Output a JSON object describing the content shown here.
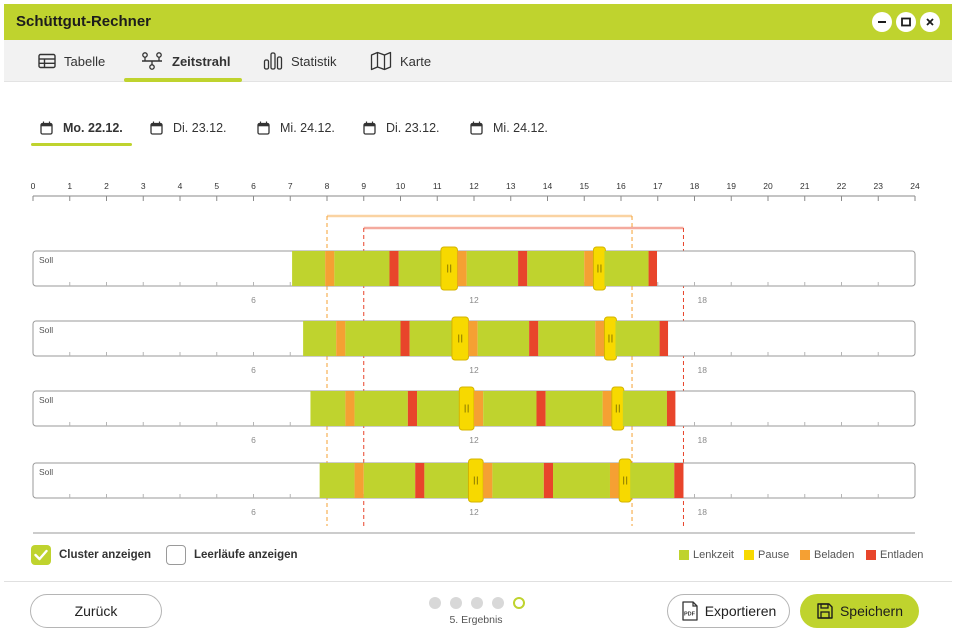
{
  "window": {
    "title": "Schüttgut-Rechner"
  },
  "nav": {
    "tabs": [
      {
        "label": "Tabelle",
        "icon": "table-icon"
      },
      {
        "label": "Zeitstrahl",
        "icon": "timeline-icon",
        "active": true
      },
      {
        "label": "Statistik",
        "icon": "bar-chart-icon"
      },
      {
        "label": "Karte",
        "icon": "map-icon"
      }
    ]
  },
  "days": [
    {
      "label": "Mo. 22.12.",
      "active": true
    },
    {
      "label": "Di. 23.12."
    },
    {
      "label": "Mi. 24.12."
    },
    {
      "label": "Di. 23.12."
    },
    {
      "label": "Mi. 24.12."
    }
  ],
  "timeline": {
    "hours": [
      "0",
      "1",
      "2",
      "3",
      "4",
      "5",
      "6",
      "7",
      "8",
      "9",
      "10",
      "11",
      "12",
      "13",
      "14",
      "15",
      "16",
      "17",
      "18",
      "19",
      "20",
      "21",
      "22",
      "23",
      "24"
    ],
    "cluster_ranges": [
      {
        "start": 8.0,
        "end": 16.3,
        "color": "#f5a033"
      },
      {
        "start": 9.0,
        "end": 17.7,
        "color": "#e8452b"
      }
    ],
    "rows": [
      {
        "label": "Soll",
        "scale_labels": [
          "6",
          "12",
          "18"
        ],
        "segments": [
          {
            "type": "Lenkzeit",
            "start": 7.05,
            "end": 7.95
          },
          {
            "type": "Beladen",
            "start": 7.95,
            "end": 8.2
          },
          {
            "type": "Lenkzeit",
            "start": 8.2,
            "end": 9.7
          },
          {
            "type": "Entladen",
            "start": 9.7,
            "end": 9.95
          },
          {
            "type": "Lenkzeit",
            "start": 9.95,
            "end": 11.1
          },
          {
            "type": "Pause",
            "start": 11.1,
            "end": 11.55
          },
          {
            "type": "Beladen",
            "start": 11.55,
            "end": 11.8
          },
          {
            "type": "Lenkzeit",
            "start": 11.8,
            "end": 13.2
          },
          {
            "type": "Entladen",
            "start": 13.2,
            "end": 13.45
          },
          {
            "type": "Lenkzeit",
            "start": 13.45,
            "end": 15.0
          },
          {
            "type": "Beladen",
            "start": 15.0,
            "end": 15.25
          },
          {
            "type": "Pause",
            "start": 15.25,
            "end": 15.55
          },
          {
            "type": "Lenkzeit",
            "start": 15.55,
            "end": 16.75
          },
          {
            "type": "Entladen",
            "start": 16.75,
            "end": 16.98
          }
        ]
      },
      {
        "label": "Soll",
        "scale_labels": [
          "6",
          "12",
          "18"
        ],
        "segments": [
          {
            "type": "Lenkzeit",
            "start": 7.35,
            "end": 8.25
          },
          {
            "type": "Beladen",
            "start": 8.25,
            "end": 8.5
          },
          {
            "type": "Lenkzeit",
            "start": 8.5,
            "end": 10.0
          },
          {
            "type": "Entladen",
            "start": 10.0,
            "end": 10.25
          },
          {
            "type": "Lenkzeit",
            "start": 10.25,
            "end": 11.4
          },
          {
            "type": "Pause",
            "start": 11.4,
            "end": 11.85
          },
          {
            "type": "Beladen",
            "start": 11.85,
            "end": 12.1
          },
          {
            "type": "Lenkzeit",
            "start": 12.1,
            "end": 13.5
          },
          {
            "type": "Entladen",
            "start": 13.5,
            "end": 13.75
          },
          {
            "type": "Lenkzeit",
            "start": 13.75,
            "end": 15.3
          },
          {
            "type": "Beladen",
            "start": 15.3,
            "end": 15.55
          },
          {
            "type": "Pause",
            "start": 15.55,
            "end": 15.85
          },
          {
            "type": "Lenkzeit",
            "start": 15.85,
            "end": 17.05
          },
          {
            "type": "Entladen",
            "start": 17.05,
            "end": 17.28
          }
        ]
      },
      {
        "label": "Soll",
        "scale_labels": [
          "6",
          "12",
          "18"
        ],
        "segments": [
          {
            "type": "Lenkzeit",
            "start": 7.55,
            "end": 8.5
          },
          {
            "type": "Beladen",
            "start": 8.5,
            "end": 8.75
          },
          {
            "type": "Lenkzeit",
            "start": 8.75,
            "end": 10.2
          },
          {
            "type": "Entladen",
            "start": 10.2,
            "end": 10.45
          },
          {
            "type": "Lenkzeit",
            "start": 10.45,
            "end": 11.6
          },
          {
            "type": "Pause",
            "start": 11.6,
            "end": 12.0
          },
          {
            "type": "Beladen",
            "start": 12.0,
            "end": 12.25
          },
          {
            "type": "Lenkzeit",
            "start": 12.25,
            "end": 13.7
          },
          {
            "type": "Entladen",
            "start": 13.7,
            "end": 13.95
          },
          {
            "type": "Lenkzeit",
            "start": 13.95,
            "end": 15.5
          },
          {
            "type": "Beladen",
            "start": 15.5,
            "end": 15.75
          },
          {
            "type": "Pause",
            "start": 15.75,
            "end": 16.05
          },
          {
            "type": "Lenkzeit",
            "start": 16.05,
            "end": 17.25
          },
          {
            "type": "Entladen",
            "start": 17.25,
            "end": 17.48
          }
        ]
      },
      {
        "label": "Soll",
        "scale_labels": [
          "6",
          "12",
          "18"
        ],
        "segments": [
          {
            "type": "Lenkzeit",
            "start": 7.8,
            "end": 8.75
          },
          {
            "type": "Beladen",
            "start": 8.75,
            "end": 9.0
          },
          {
            "type": "Lenkzeit",
            "start": 9.0,
            "end": 10.4
          },
          {
            "type": "Entladen",
            "start": 10.4,
            "end": 10.65
          },
          {
            "type": "Lenkzeit",
            "start": 10.65,
            "end": 11.85
          },
          {
            "type": "Pause",
            "start": 11.85,
            "end": 12.25
          },
          {
            "type": "Beladen",
            "start": 12.25,
            "end": 12.5
          },
          {
            "type": "Lenkzeit",
            "start": 12.5,
            "end": 13.9
          },
          {
            "type": "Entladen",
            "start": 13.9,
            "end": 14.15
          },
          {
            "type": "Lenkzeit",
            "start": 14.15,
            "end": 15.7
          },
          {
            "type": "Beladen",
            "start": 15.7,
            "end": 15.95
          },
          {
            "type": "Pause",
            "start": 15.95,
            "end": 16.25
          },
          {
            "type": "Lenkzeit",
            "start": 16.25,
            "end": 17.45
          },
          {
            "type": "Entladen",
            "start": 17.45,
            "end": 17.7
          }
        ]
      }
    ],
    "colors": {
      "Lenkzeit": "#bfd32e",
      "Pause": "#f7d900",
      "Beladen": "#f5a033",
      "Entladen": "#e8452b"
    }
  },
  "options": {
    "cluster_label": "Cluster anzeigen",
    "cluster_checked": true,
    "idle_label": "Leerläufe anzeigen",
    "idle_checked": false
  },
  "legend": [
    {
      "label": "Lenkzeit",
      "color": "#bfd32e"
    },
    {
      "label": "Pause",
      "color": "#f7d900"
    },
    {
      "label": "Beladen",
      "color": "#f5a033"
    },
    {
      "label": "Entladen",
      "color": "#e8452b"
    }
  ],
  "footer": {
    "back_label": "Zurück",
    "export_label": "Exportieren",
    "save_label": "Speichern",
    "step_label": "5. Ergebnis",
    "steps_total": 5,
    "current_step": 5
  },
  "accent_color": "#bfd32e"
}
